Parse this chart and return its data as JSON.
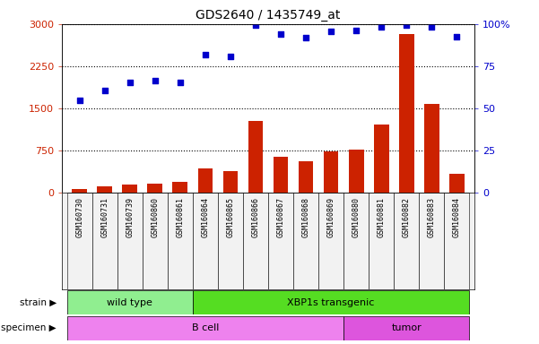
{
  "title": "GDS2640 / 1435749_at",
  "samples": [
    "GSM160730",
    "GSM160731",
    "GSM160739",
    "GSM160860",
    "GSM160861",
    "GSM160864",
    "GSM160865",
    "GSM160866",
    "GSM160867",
    "GSM160868",
    "GSM160869",
    "GSM160880",
    "GSM160881",
    "GSM160882",
    "GSM160883",
    "GSM160884"
  ],
  "counts": [
    60,
    105,
    140,
    165,
    185,
    430,
    390,
    1280,
    640,
    560,
    740,
    760,
    1210,
    2820,
    1580,
    335
  ],
  "percentiles_left_scale": [
    1650,
    1820,
    1960,
    2000,
    1960,
    2460,
    2430,
    2975,
    2820,
    2760,
    2870,
    2880,
    2950,
    2985,
    2950,
    2780
  ],
  "strain_groups": [
    {
      "label": "wild type",
      "start": 0,
      "end": 5,
      "color": "#90EE90"
    },
    {
      "label": "XBP1s transgenic",
      "start": 5,
      "end": 16,
      "color": "#55DD22"
    }
  ],
  "specimen_groups": [
    {
      "label": "B cell",
      "start": 0,
      "end": 11,
      "color": "#EE82EE"
    },
    {
      "label": "tumor",
      "start": 11,
      "end": 16,
      "color": "#DD55DD"
    }
  ],
  "ylim_left": [
    0,
    3000
  ],
  "yticks_left": [
    0,
    750,
    1500,
    2250,
    3000
  ],
  "yticks_right_labels": [
    "0",
    "25",
    "50",
    "75",
    "100%"
  ],
  "bar_color": "#CC2200",
  "dot_color": "#0000CC",
  "bg_color": "#F2F2F2",
  "white": "#ffffff"
}
